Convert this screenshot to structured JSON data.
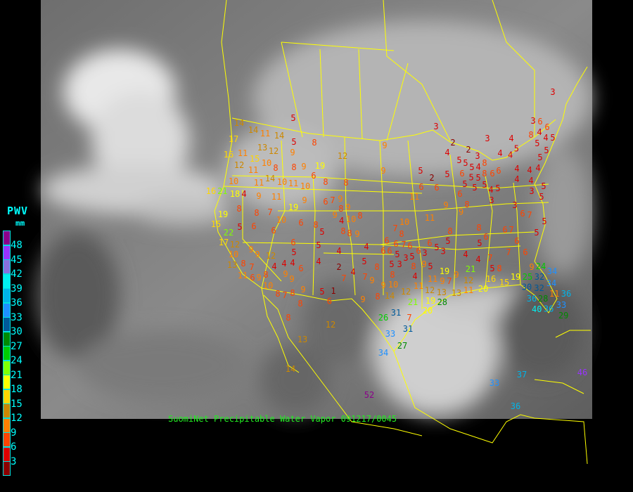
{
  "caption": "SuomiNet Precipitable Water Vapor 091217/0045",
  "legend": {
    "title": "PWV",
    "unit": "mm",
    "labels": [
      "48",
      "45",
      "42",
      "39",
      "36",
      "33",
      "30",
      "27",
      "24",
      "21",
      "18",
      "15",
      "12",
      "9",
      "6",
      "3"
    ],
    "colors": [
      "#8b008b",
      "#9933ff",
      "#8870dd",
      "#00f0f0",
      "#00b4e8",
      "#1e90ff",
      "#005a9a",
      "#008a00",
      "#00cc00",
      "#80ff00",
      "#ffff00",
      "#ffd700",
      "#cc8800",
      "#ff8000",
      "#ff4400",
      "#dd0000",
      "#8b0000"
    ]
  },
  "map": {
    "boundary_color": "#ffff00",
    "stations": [
      "5",
      "14",
      "14",
      "11",
      "14",
      "5",
      "8",
      "17",
      "13",
      "12",
      "9",
      "16",
      "11",
      "15",
      "12",
      "9",
      "12",
      "10",
      "11",
      "8",
      "8",
      "9",
      "19",
      "6",
      "9",
      "10",
      "11",
      "14",
      "10",
      "11",
      "10",
      "8",
      "8",
      "16",
      "21",
      "18",
      "4",
      "9",
      "11",
      "9",
      "6",
      "7",
      "9",
      "19",
      "8",
      "9",
      "19",
      "8",
      "8",
      "7",
      "9",
      "4",
      "10",
      "8",
      "15",
      "5",
      "6",
      "10",
      "6",
      "8",
      "5",
      "8",
      "8",
      "9",
      "22",
      "6",
      "17",
      "12",
      "6",
      "5",
      "4",
      "6",
      "10",
      "9",
      "9",
      "12",
      "5",
      "4",
      "13",
      "4",
      "4",
      "4",
      "4",
      "5",
      "8",
      "8",
      "7",
      "6",
      "2",
      "4",
      "11",
      "6",
      "9",
      "8",
      "10",
      "9",
      "9",
      "7",
      "7",
      "9",
      "9",
      "8",
      "7",
      "8",
      "9",
      "5",
      "1",
      "9",
      "8",
      "8",
      "6",
      "3",
      "3",
      "3",
      "6",
      "4",
      "6",
      "3",
      "4",
      "8",
      "5",
      "4",
      "5",
      "2",
      "2",
      "4",
      "5",
      "4",
      "4",
      "5",
      "3",
      "5",
      "5",
      "5",
      "4",
      "8",
      "5",
      "4",
      "5",
      "6",
      "5",
      "5",
      "8",
      "6",
      "6",
      "4",
      "4",
      "5",
      "2",
      "5",
      "5",
      "5",
      "4",
      "4",
      "6",
      "6",
      "3",
      "5",
      "4",
      "5",
      "6",
      "11",
      "5",
      "3",
      "9",
      "8",
      "3",
      "9",
      "6",
      "7",
      "11",
      "10",
      "5",
      "7",
      "8",
      "8",
      "6",
      "7",
      "5",
      "8",
      "5",
      "6",
      "6",
      "7",
      "6",
      "5",
      "3",
      "5",
      "6",
      "6",
      "6",
      "5",
      "6",
      "5",
      "6",
      "3",
      "3",
      "4",
      "3",
      "4",
      "7",
      "7",
      "6",
      "5",
      "8",
      "9",
      "5",
      "5",
      "8",
      "8",
      "4",
      "21",
      "9",
      "10",
      "11",
      "11",
      "9",
      "19",
      "7",
      "9",
      "12",
      "16",
      "15",
      "19",
      "25",
      "32",
      "24",
      "30",
      "32",
      "34",
      "34",
      "11",
      "14",
      "12",
      "12",
      "13",
      "13",
      "11",
      "20",
      "21",
      "19",
      "28",
      "28",
      "36",
      "36",
      "33",
      "36",
      "40",
      "29",
      "31",
      "20",
      "26",
      "33",
      "31",
      "27",
      "34",
      "7",
      "8",
      "12",
      "13",
      "14",
      "52",
      "33",
      "37",
      "46",
      "36"
    ]
  }
}
